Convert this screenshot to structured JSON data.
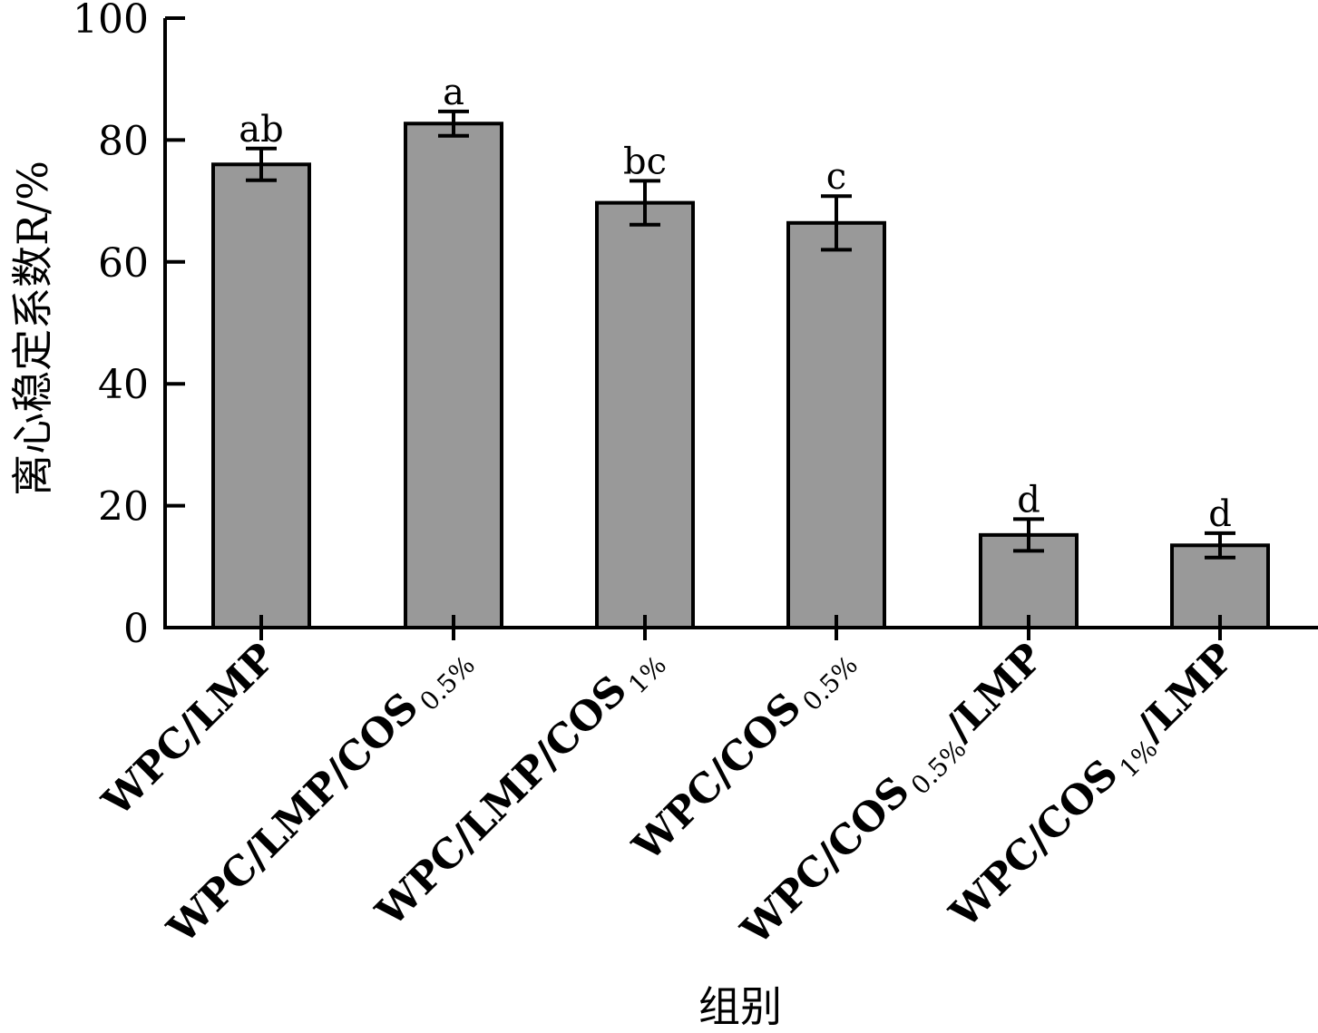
{
  "chart_data": {
    "type": "bar",
    "title": "",
    "xlabel": "组别",
    "ylabel": "离心稳定系数R/%",
    "ylim": [
      0,
      100
    ],
    "yticks": [
      0,
      20,
      40,
      60,
      80,
      100
    ],
    "categories": [
      {
        "main": "WPC/LMP/",
        "prefix": "WPC/LMP",
        "sub": "",
        "suffix": ""
      },
      {
        "main": "WPC/LMP/COS",
        "prefix": "WPC/LMP/COS",
        "sub": "0.5%",
        "suffix": ""
      },
      {
        "main": "WPC/LMP/COS",
        "prefix": "WPC/LMP/COS",
        "sub": "1%",
        "suffix": ""
      },
      {
        "main": "WPC/COS",
        "prefix": "WPC/COS",
        "sub": "0.5%",
        "suffix": ""
      },
      {
        "main": "WPC/COS",
        "prefix": "WPC/COS",
        "sub": "0.5%",
        "suffix": "/LMP"
      },
      {
        "main": "WPC/COS",
        "prefix": "WPC/COS",
        "sub": "1%",
        "suffix": "/LMP"
      }
    ],
    "values": [
      76,
      82.7,
      69.7,
      66.4,
      15.2,
      13.5
    ],
    "errors": [
      2.6,
      2.0,
      3.6,
      4.4,
      2.6,
      2.0
    ],
    "significance": [
      "ab",
      "a",
      "bc",
      "c",
      "d",
      "d"
    ],
    "bar_color": "#999999",
    "edge_color": "#000000"
  }
}
